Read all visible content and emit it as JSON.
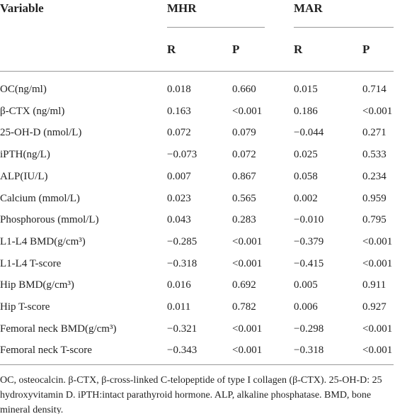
{
  "table": {
    "first_header": "Variable",
    "column_groups": [
      "MHR",
      "MAR"
    ],
    "subheaders": [
      "R",
      "P",
      "R",
      "P"
    ],
    "rows": [
      [
        "OC(ng/ml)",
        "0.018",
        "0.660",
        "0.015",
        "0.714"
      ],
      [
        "β-CTX (ng/ml)",
        "0.163",
        "<0.001",
        "0.186",
        "<0.001"
      ],
      [
        "25-OH-D (nmol/L)",
        "0.072",
        "0.079",
        "−0.044",
        "0.271"
      ],
      [
        "iPTH(ng/L)",
        "−0.073",
        "0.072",
        "0.025",
        "0.533"
      ],
      [
        "ALP(IU/L)",
        "0.007",
        "0.867",
        "0.058",
        "0.234"
      ],
      [
        "Calcium (mmol/L)",
        "0.023",
        "0.565",
        "0.002",
        "0.959"
      ],
      [
        "Phosphorous (mmol/L)",
        "0.043",
        "0.283",
        "−0.010",
        "0.795"
      ],
      [
        "L1-L4 BMD(g/cm³)",
        "−0.285",
        "<0.001",
        "−0.379",
        "<0.001"
      ],
      [
        "L1-L4 T-score",
        "−0.318",
        "<0.001",
        "−0.415",
        "<0.001"
      ],
      [
        "Hip BMD(g/cm³)",
        "0.016",
        "0.692",
        "0.005",
        "0.911"
      ],
      [
        "Hip T-score",
        "0.011",
        "0.782",
        "0.006",
        "0.927"
      ],
      [
        "Femoral neck BMD(g/cm³)",
        "−0.321",
        "<0.001",
        "−0.298",
        "<0.001"
      ],
      [
        "Femoral neck T-score",
        "−0.343",
        "<0.001",
        "−0.318",
        "<0.001"
      ]
    ]
  },
  "footnote": "OC, osteocalcin. β-CTX, β-cross-linked C-telopeptide of type I collagen (β-CTX). 25-OH-D: 25 hydroxyvitamin D. iPTH:intact parathyroid hormone. ALP, alkaline phosphatase. BMD, bone mineral density."
}
